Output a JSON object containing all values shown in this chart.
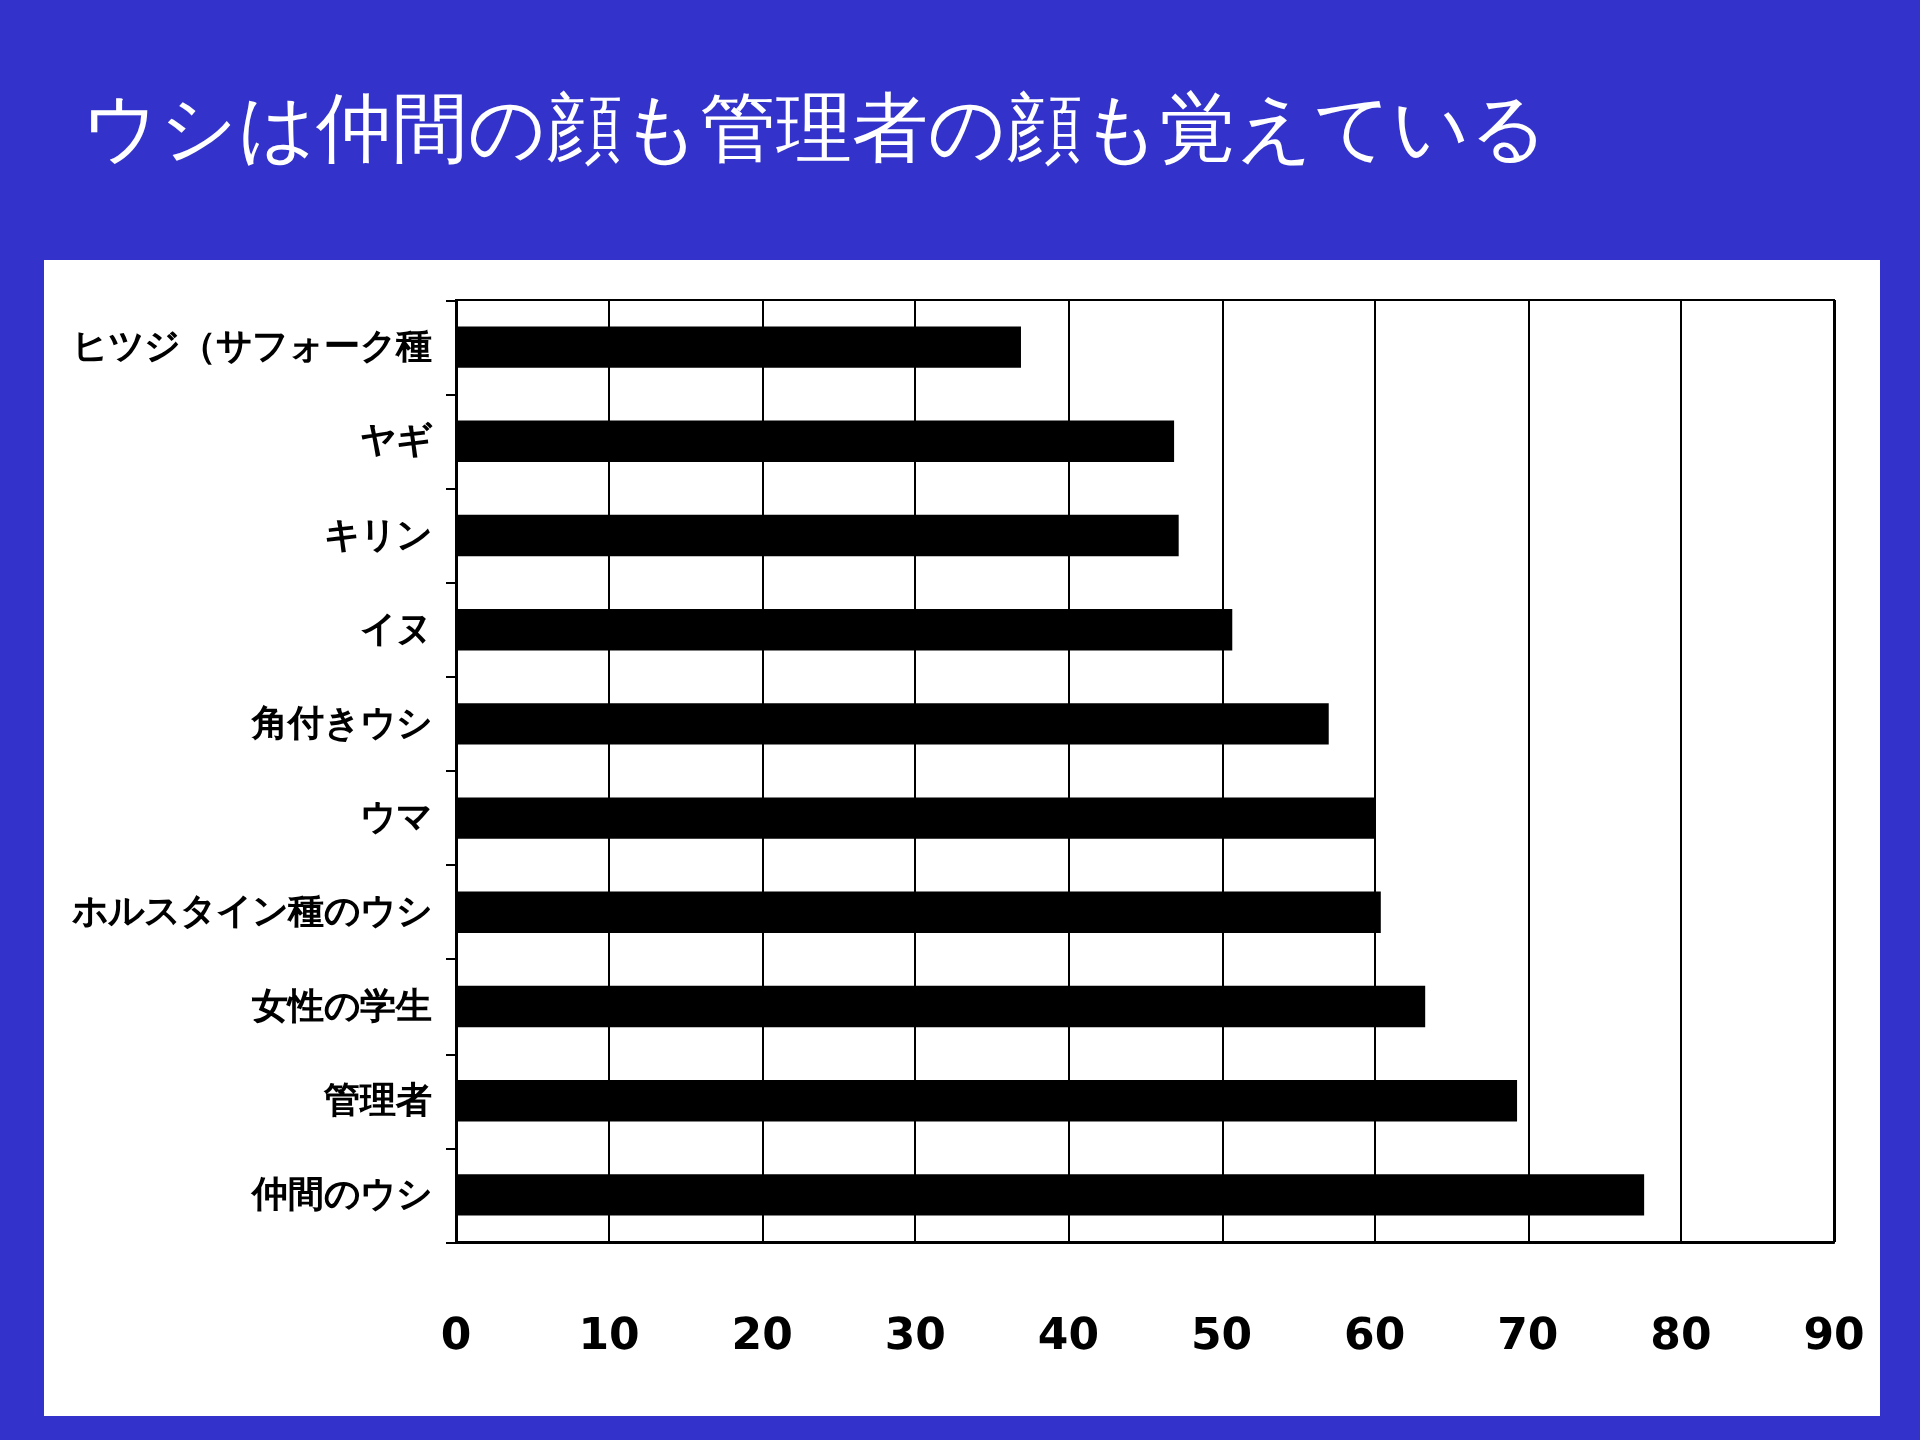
{
  "chart_data": {
    "type": "bar",
    "orientation": "horizontal",
    "title": "ウシは仲間の顔も管理者の顔も覚えている",
    "categories": [
      "ヒツジ（サフォーク種",
      "ヤギ",
      "キリン",
      "イヌ",
      "角付きウシ",
      "ウマ",
      "ホルスタイン種のウシ",
      "女性の学生",
      "管理者",
      "仲間のウシ"
    ],
    "values": [
      36.9,
      46.9,
      47.2,
      50.7,
      57.0,
      60.0,
      60.4,
      63.3,
      69.3,
      77.6
    ],
    "color": "#000000",
    "xlim": [
      0,
      90
    ],
    "xticks": [
      0,
      10,
      20,
      30,
      40,
      50,
      60,
      70,
      80,
      90
    ],
    "grid": "x"
  }
}
